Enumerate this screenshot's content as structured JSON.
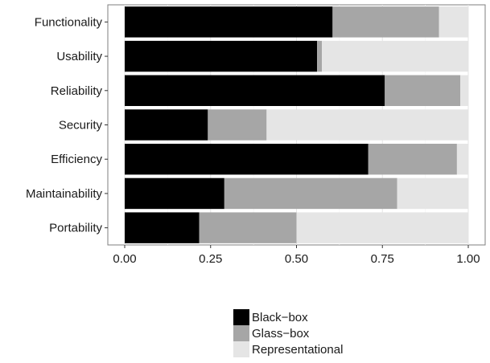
{
  "chart_data": {
    "type": "bar",
    "orientation": "horizontal",
    "stacked": true,
    "normalized": true,
    "categories": [
      "Functionality",
      "Usability",
      "Reliability",
      "Security",
      "Efficiency",
      "Maintainability",
      "Portability"
    ],
    "series": [
      {
        "name": "Black−box",
        "color": "#000000",
        "values": [
          0.605,
          0.56,
          0.757,
          0.242,
          0.709,
          0.29,
          0.217
        ]
      },
      {
        "name": "Glass−box",
        "color": "#a6a6a6",
        "values": [
          0.31,
          0.014,
          0.22,
          0.171,
          0.258,
          0.503,
          0.283
        ]
      },
      {
        "name": "Representational",
        "color": "#e5e5e5",
        "values": [
          0.085,
          0.426,
          0.023,
          0.587,
          0.033,
          0.207,
          0.5
        ]
      }
    ],
    "xlim": [
      0,
      1
    ],
    "x_ticks": [
      "0.00",
      "0.25",
      "0.50",
      "0.75",
      "1.00"
    ],
    "x_tick_values": [
      0,
      0.25,
      0.5,
      0.75,
      1
    ],
    "xlabel": "",
    "ylabel": "",
    "grid": true,
    "legend_position": "bottom"
  }
}
